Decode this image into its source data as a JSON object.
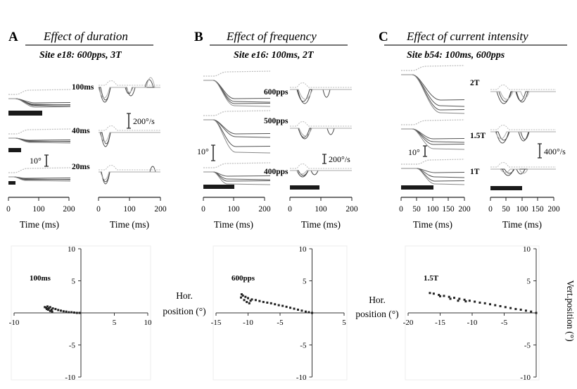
{
  "panels": [
    {
      "letter": "A",
      "title": "Effect of duration",
      "site": "Site e18: 600pps, 3T",
      "conditions": [
        "100ms",
        "40ms",
        "20ms"
      ],
      "position_scale": "10°",
      "velocity_scale": "200°/s",
      "time_ticks": [
        "0",
        "100",
        "200"
      ],
      "time_label": "Time (ms)",
      "scatter_label": "100ms"
    },
    {
      "letter": "B",
      "title": "Effect of frequency",
      "site": "Site e16: 100ms, 2T",
      "conditions": [
        "600pps",
        "500pps",
        "400pps"
      ],
      "position_scale": "10°",
      "velocity_scale": "200°/s",
      "time_ticks": [
        "0",
        "100",
        "200"
      ],
      "time_label": "Time (ms)",
      "scatter_label": "600pps"
    },
    {
      "letter": "C",
      "title": "Effect of current intensity",
      "site": "Site b54: 100ms, 600pps",
      "conditions": [
        "2T",
        "1.5T",
        "1T"
      ],
      "position_scale": "10°",
      "velocity_scale": "400°/s",
      "time_ticks": [
        "0",
        "50",
        "100",
        "150",
        "200"
      ],
      "time_label": "Time (ms)",
      "scatter_label": "1.5T"
    }
  ],
  "hor_label": [
    "Hor.",
    "position (°)"
  ],
  "vert_label": "Vert.position (°)",
  "chart_data": [
    {
      "type": "scatter",
      "label": "100ms",
      "xlim": [
        -10,
        10
      ],
      "ylim": [
        -10,
        10
      ],
      "xticks": [
        -10,
        5,
        10
      ],
      "yticks": [
        10,
        5,
        -5,
        -10
      ],
      "x": [
        -0.2,
        -0.6,
        -1.0,
        -1.4,
        -1.8,
        -2.2,
        -2.6,
        -3.0,
        -3.4,
        -3.8,
        -4.2,
        -4.6,
        -5.0,
        -4.8,
        -4.4,
        -4.9,
        -5.2,
        -5.4,
        -5.1,
        -4.6,
        -4.3
      ],
      "y": [
        0.0,
        0.0,
        0.05,
        0.1,
        0.1,
        0.2,
        0.25,
        0.35,
        0.45,
        0.6,
        0.7,
        0.9,
        1.0,
        0.7,
        0.5,
        0.5,
        0.8,
        0.9,
        0.6,
        0.3,
        0.2
      ]
    },
    {
      "type": "scatter",
      "label": "600pps",
      "xlim": [
        -15,
        5
      ],
      "ylim": [
        -10,
        10
      ],
      "xticks": [
        -15,
        -10,
        -5,
        5
      ],
      "yticks": [
        10,
        5,
        -5,
        -10
      ],
      "x": [
        0.0,
        -0.5,
        -1.0,
        -1.6,
        -2.2,
        -2.8,
        -3.4,
        -4.0,
        -4.6,
        -5.2,
        -5.8,
        -6.4,
        -7.0,
        -7.6,
        -8.2,
        -8.8,
        -9.4,
        -10.0,
        -10.4,
        -10.8,
        -11.1,
        -10.6,
        -10.2,
        -9.8,
        -9.6,
        -11.0
      ],
      "y": [
        0.0,
        0.1,
        0.2,
        0.35,
        0.5,
        0.65,
        0.8,
        0.95,
        1.1,
        1.2,
        1.35,
        1.5,
        1.6,
        1.7,
        1.85,
        2.0,
        2.1,
        2.3,
        2.5,
        2.7,
        2.4,
        2.0,
        1.7,
        1.5,
        1.9,
        2.9
      ]
    },
    {
      "type": "scatter",
      "label": "1.5T",
      "xlim": [
        -20,
        0
      ],
      "ylim": [
        -10,
        10
      ],
      "xticks": [
        -20,
        -15,
        -10,
        -5
      ],
      "yticks": [
        10,
        5,
        -5,
        -10
      ],
      "x": [
        0.0,
        -0.8,
        -1.6,
        -2.4,
        -3.2,
        -4.0,
        -4.8,
        -5.6,
        -6.4,
        -7.2,
        -8.0,
        -8.8,
        -9.6,
        -10.4,
        -11.2,
        -12.0,
        -12.8,
        -13.6,
        -14.4,
        -15.2,
        -16.0,
        -16.6,
        -15.0,
        -13.4,
        -12.2,
        -11.0
      ],
      "y": [
        0.0,
        0.2,
        0.35,
        0.5,
        0.6,
        0.75,
        0.9,
        1.05,
        1.2,
        1.35,
        1.5,
        1.6,
        1.75,
        1.9,
        2.05,
        2.2,
        2.35,
        2.5,
        2.65,
        2.8,
        3.0,
        3.1,
        2.6,
        2.2,
        1.9,
        1.8
      ]
    }
  ]
}
